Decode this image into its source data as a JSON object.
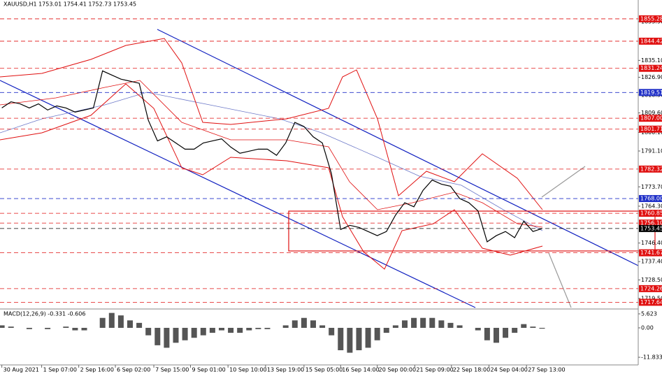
{
  "chart_data": [
    {
      "type": "line",
      "title": "XAUUSD,H1  1753.01 1754.41 1752.73 1753.45",
      "x": [
        0,
        1,
        2,
        3,
        4,
        5,
        6,
        7,
        8,
        9,
        10,
        11,
        12,
        13,
        14,
        15,
        16,
        17,
        18,
        19,
        20,
        21,
        22,
        23,
        24,
        25,
        26,
        27,
        28,
        29,
        30,
        31,
        32,
        33,
        34,
        35,
        36,
        37,
        38,
        39,
        40,
        41,
        42,
        43,
        44,
        45,
        46,
        47,
        48,
        49,
        50,
        51,
        52,
        53,
        54,
        55,
        56,
        57,
        58,
        59
      ],
      "series": [
        {
          "name": "XAUUSD",
          "color": "#000000",
          "values": [
            1812,
            1815,
            1814,
            1812,
            1814,
            1811,
            1813,
            1812,
            1810,
            1811,
            1812,
            1830,
            1828,
            1826,
            1825,
            1824,
            1806,
            1796,
            1798,
            1795,
            1792,
            1792,
            1795,
            1796,
            1797,
            1793,
            1790,
            1791,
            1792,
            1792,
            1789,
            1795,
            1805,
            1803,
            1798,
            1795,
            1780,
            1753,
            1755,
            1754,
            1752,
            1750,
            1752,
            1760,
            1766,
            1764,
            1772,
            1777,
            1775,
            1774,
            1768,
            1766,
            1762,
            1747,
            1750,
            1752,
            1749,
            1757,
            1752,
            1753.45
          ]
        }
      ],
      "xlim": [
        -0.2,
        69.5
      ],
      "xticks": [
        {
          "value": 0,
          "label": "30 Aug 2021"
        },
        {
          "value": 4.35,
          "label": "1 Sep 07:00"
        },
        {
          "value": 8.4,
          "label": "2 Sep 16:00"
        },
        {
          "value": 12.4,
          "label": "6 Sep 02:00"
        },
        {
          "value": 16.6,
          "label": "7 Sep 15:00"
        },
        {
          "value": 20.6,
          "label": "9 Sep 01:00"
        },
        {
          "value": 24.7,
          "label": "10 Sep 10:00"
        },
        {
          "value": 28.8,
          "label": "13 Sep 19:00"
        },
        {
          "value": 33,
          "label": "15 Sep 05:00"
        },
        {
          "value": 37,
          "label": "16 Sep 14:00"
        },
        {
          "value": 41,
          "label": "20 Sep 00:00"
        },
        {
          "value": 45.1,
          "label": "21 Sep 09:00"
        },
        {
          "value": 49.1,
          "label": "22 Sep 18:00"
        },
        {
          "value": 53.2,
          "label": "24 Sep 04:00"
        },
        {
          "value": 57.3,
          "label": "27 Sep 13:00"
        }
      ],
      "ylim": [
        1715.06,
        1864.42
      ],
      "yticks": [
        {
          "value": 1853.9,
          "label": "1853.90"
        },
        {
          "value": 1835.1,
          "label": "1835.10"
        },
        {
          "value": 1826.9,
          "label": "1826.90"
        },
        {
          "value": 1818.3,
          "label": "1818.30"
        },
        {
          "value": 1809.6,
          "label": "1809.60"
        },
        {
          "value": 1800.1,
          "label": "1800.10"
        },
        {
          "value": 1791.1,
          "label": "1791.10"
        },
        {
          "value": 1773.7,
          "label": "1773.70"
        },
        {
          "value": 1764.3,
          "label": "1764.30"
        },
        {
          "value": 1746.4,
          "label": "1746.40"
        },
        {
          "value": 1737.4,
          "label": "1737.40"
        },
        {
          "value": 1728.5,
          "label": "1728.50"
        },
        {
          "value": 1719.5,
          "label": "1719.50"
        }
      ],
      "levels": [
        {
          "value": 1855.28,
          "label": "1855.28",
          "color": "#e01010"
        },
        {
          "value": 1844.42,
          "label": "1844.42",
          "color": "#e01010"
        },
        {
          "value": 1831.24,
          "label": "1831.24",
          "color": "#e01010"
        },
        {
          "value": 1819.51,
          "label": "1819.51",
          "color": "#2030c8"
        },
        {
          "value": 1807,
          "label": "1807.00",
          "color": "#e01010"
        },
        {
          "value": 1801.71,
          "label": "1801.71",
          "color": "#e01010"
        },
        {
          "value": 1782.32,
          "label": "1782.32",
          "color": "#e01010"
        },
        {
          "value": 1768,
          "label": "1768.00",
          "color": "#2030c8"
        },
        {
          "value": 1760.85,
          "label": "1760.85",
          "color": "#e01010"
        },
        {
          "value": 1756.1,
          "label": "1756.10",
          "color": "#e01010"
        },
        {
          "value": 1753.45,
          "label": "1753.45",
          "color": "#000000"
        },
        {
          "value": 1741.67,
          "label": "1741.67",
          "color": "#e01010"
        },
        {
          "value": 1724.26,
          "label": "1724.26",
          "color": "#e01010"
        },
        {
          "value": 1717.64,
          "label": "1717.64",
          "color": "#e01010"
        }
      ]
    },
    {
      "type": "bar",
      "title": "MACD(12,26,9) -0.331 -0.606",
      "color": "#555555",
      "values": [
        1,
        0.5,
        0,
        -0.5,
        0,
        -0.5,
        0,
        0.5,
        -1,
        -1,
        0,
        4,
        6,
        5,
        3,
        2,
        -3,
        -7,
        -8,
        -6,
        -5,
        -4,
        -3,
        -2,
        -1,
        -2,
        -2,
        -1,
        -0.5,
        -0.5,
        0,
        1,
        3,
        4,
        3,
        1,
        -3,
        -9,
        -10,
        -9,
        -8,
        -5,
        -2,
        1,
        3,
        4,
        4,
        4,
        3,
        2,
        1,
        0,
        -1,
        -5,
        -6,
        -4,
        -2,
        1.5,
        0.5,
        -0.331
      ],
      "ylim": [
        -14.9,
        7.3
      ],
      "yticks": [
        5.623,
        {
          "value": 0,
          "label": "0.00"
        },
        -11.833
      ]
    }
  ]
}
